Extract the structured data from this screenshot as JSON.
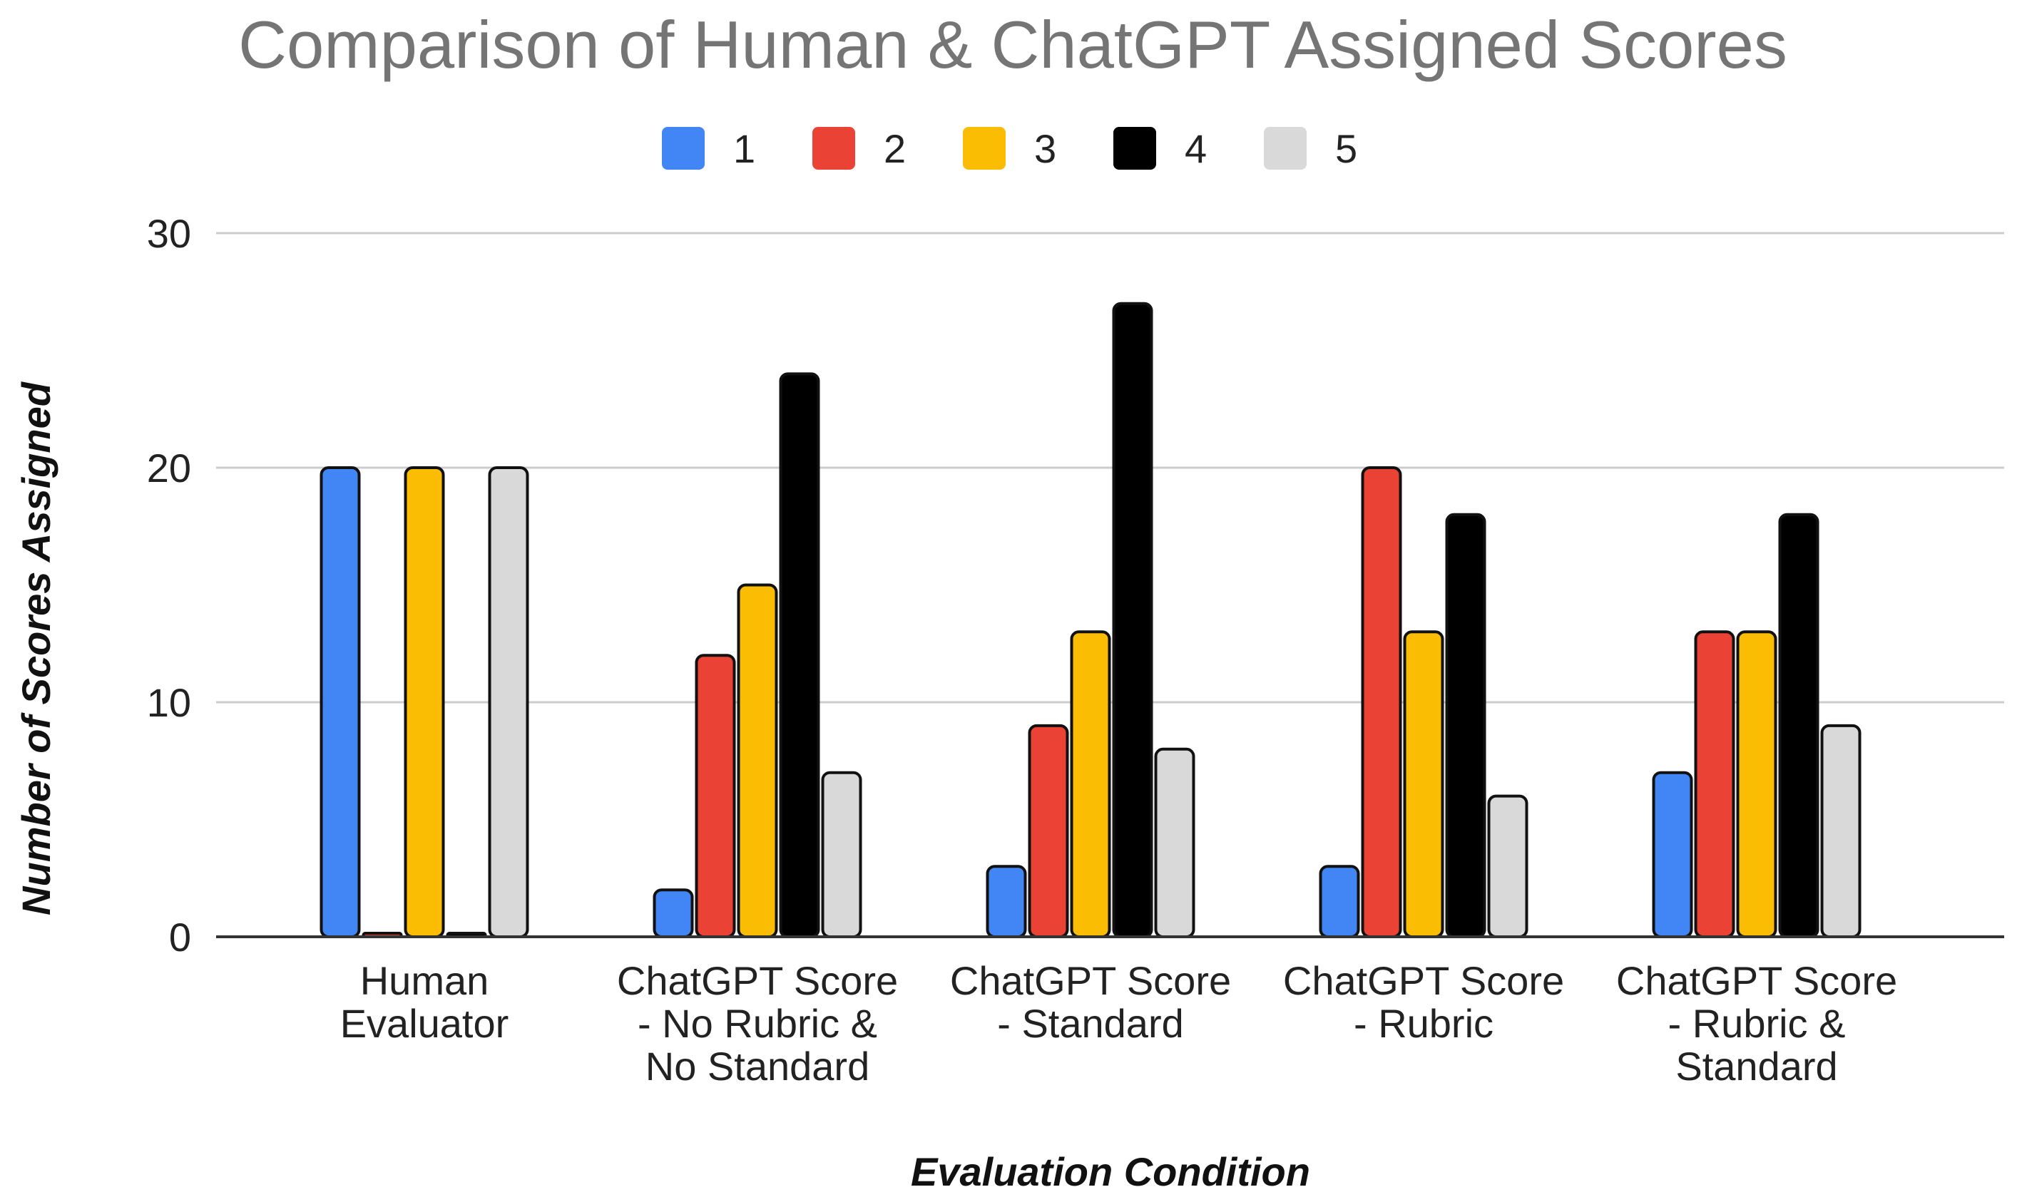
{
  "chart_data": {
    "type": "bar",
    "title": "Comparison of Human & ChatGPT Assigned Scores",
    "xlabel": "Evaluation Condition",
    "ylabel": "Number of Scores Assigned",
    "ylim": [
      0,
      30
    ],
    "yticks": [
      "0",
      "10",
      "20",
      "30"
    ],
    "grid": true,
    "legend_position": "top",
    "categories": [
      [
        "Human",
        "Evaluator"
      ],
      [
        "ChatGPT Score",
        "- No Rubric &",
        "No Standard"
      ],
      [
        "ChatGPT Score",
        "- Standard"
      ],
      [
        "ChatGPT Score",
        "- Rubric"
      ],
      [
        "ChatGPT Score",
        "- Rubric &",
        "Standard"
      ]
    ],
    "series": [
      {
        "name": "1",
        "color": "#4285f4",
        "values": [
          20,
          2,
          3,
          3,
          7
        ]
      },
      {
        "name": "2",
        "color": "#ea4335",
        "values": [
          0,
          12,
          9,
          20,
          13
        ]
      },
      {
        "name": "3",
        "color": "#fbbc04",
        "values": [
          20,
          15,
          13,
          13,
          13
        ]
      },
      {
        "name": "4",
        "color": "#000000",
        "values": [
          0,
          24,
          27,
          18,
          18
        ]
      },
      {
        "name": "5",
        "color": "#d9d9d9",
        "values": [
          20,
          7,
          8,
          6,
          9
        ]
      }
    ]
  }
}
